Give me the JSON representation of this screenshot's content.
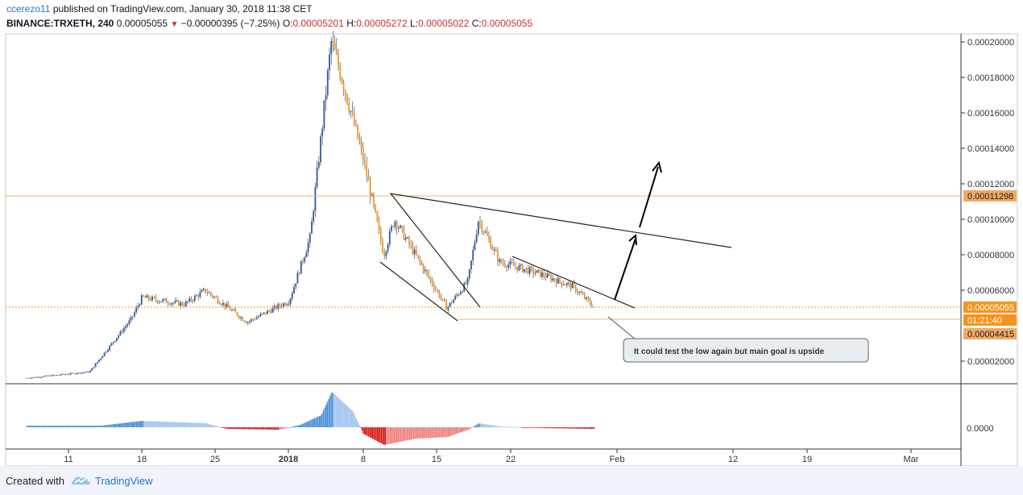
{
  "header": {
    "user": "ccerezo11",
    "published": "published on TradingView.com, January 30, 2018 11:38 CET",
    "symbol": "BINANCE:TRXETH, 240",
    "last": "0.00005055",
    "change": "−0.00000395 (−7.25%)",
    "o_label": "O:",
    "o_value": "0.00005201",
    "h_label": "H:",
    "h_value": "0.00005272",
    "l_label": "L:",
    "l_value": "0.00005022",
    "c_label": "C:",
    "c_value": "0.00005055"
  },
  "chart_data": {
    "type": "candlestick",
    "symbol": "BINANCE:TRXETH",
    "interval": "240",
    "y_axis_labels": [
      "0.00020000",
      "0.00018000",
      "0.00016000",
      "0.00014000",
      "0.00012000",
      "0.00010000",
      "0.00008000",
      "0.00006000",
      "0.00002000"
    ],
    "ylim": [
      0.0,
      0.00021
    ],
    "x_tick_labels": [
      "11",
      "18",
      "25",
      "2018",
      "8",
      "15",
      "22",
      "Feb",
      "12",
      "19",
      "Mar"
    ],
    "price_markers": [
      {
        "label": "0.00011298",
        "value": 0.00011298,
        "color": "#f0a860"
      },
      {
        "label": "0.00005055",
        "value": 5.055e-05,
        "color": "#f7931a"
      },
      {
        "label": "01:21:40",
        "color": "#f7931a"
      },
      {
        "label": "0.00004415",
        "value": 4.415e-05,
        "color": "#f0a860"
      }
    ],
    "indicator": {
      "axis_label": "0.0000",
      "type": "histogram"
    },
    "annotation": "It could test the low again but main goal is upside",
    "approx_close_path": [
      {
        "date": "2017-12-07",
        "close": 1.05e-05
      },
      {
        "date": "2017-12-13",
        "close": 1.4e-05
      },
      {
        "date": "2017-12-17",
        "close": 4.4e-05
      },
      {
        "date": "2017-12-18",
        "close": 5.6e-05
      },
      {
        "date": "2017-12-22",
        "close": 5.2e-05
      },
      {
        "date": "2017-12-24",
        "close": 6e-05
      },
      {
        "date": "2017-12-28",
        "close": 4.2e-05
      },
      {
        "date": "2018-01-01",
        "close": 5.4e-05
      },
      {
        "date": "2018-01-03",
        "close": 9e-05
      },
      {
        "date": "2018-01-05",
        "close": 0.0002
      },
      {
        "date": "2018-01-06",
        "close": 0.00018
      },
      {
        "date": "2018-01-08",
        "close": 0.000135
      },
      {
        "date": "2018-01-10",
        "close": 8e-05
      },
      {
        "date": "2018-01-11",
        "close": 0.0001
      },
      {
        "date": "2018-01-13",
        "close": 8e-05
      },
      {
        "date": "2018-01-16",
        "close": 5e-05
      },
      {
        "date": "2018-01-18",
        "close": 6.5e-05
      },
      {
        "date": "2018-01-19",
        "close": 0.0001
      },
      {
        "date": "2018-01-21",
        "close": 7.6e-05
      },
      {
        "date": "2018-01-25",
        "close": 6.9e-05
      },
      {
        "date": "2018-01-28",
        "close": 6.2e-05
      },
      {
        "date": "2018-01-30",
        "close": 5.05e-05
      }
    ]
  },
  "footer": {
    "created": "Created with",
    "brand": "TradingView"
  }
}
